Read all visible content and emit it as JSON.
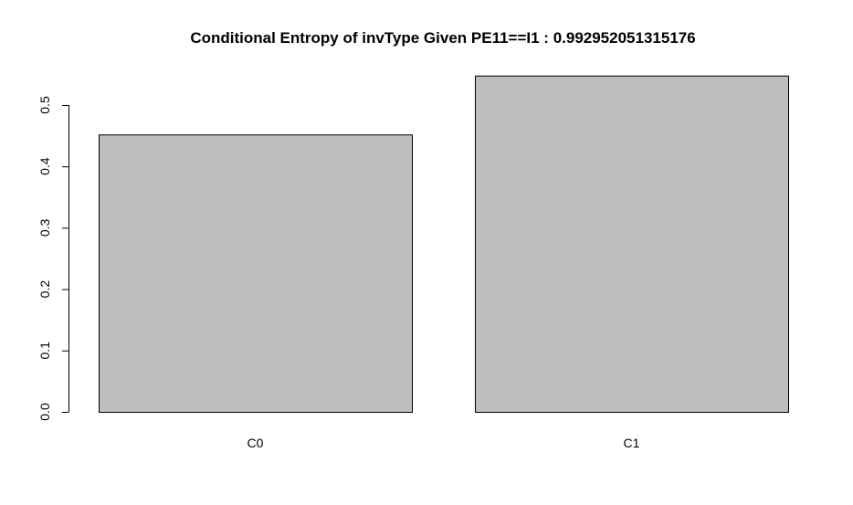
{
  "chart_data": {
    "type": "bar",
    "title": "Conditional Entropy of invType Given PE11==I1 :  0.992952051315176",
    "categories": [
      "C0",
      "C1"
    ],
    "values": [
      0.452,
      0.548
    ],
    "xlabel": "",
    "ylabel": "",
    "ylim": [
      0,
      0.5
    ],
    "yticks": [
      0.0,
      0.1,
      0.2,
      0.3,
      0.4,
      0.5
    ],
    "ytick_labels": [
      "0.0",
      "0.1",
      "0.2",
      "0.3",
      "0.4",
      "0.5"
    ],
    "grid": false,
    "legend": "none",
    "colors": {
      "bar_fill": "#bebebe",
      "bar_stroke": "#000000"
    }
  }
}
